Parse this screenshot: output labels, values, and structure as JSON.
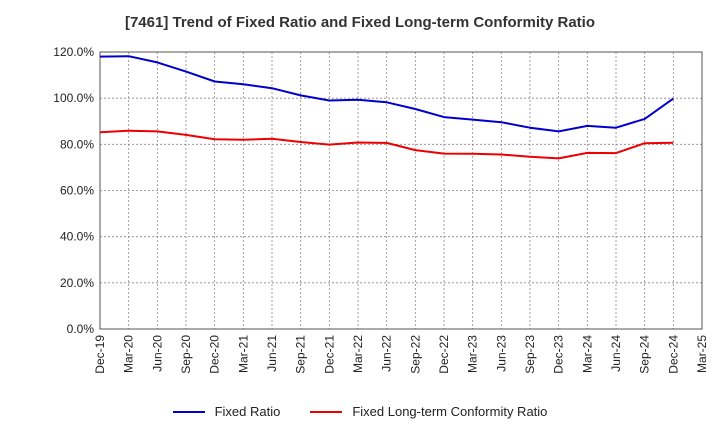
{
  "chart_data": {
    "type": "line",
    "title": "[7461]  Trend of Fixed Ratio and Fixed Long-term Conformity Ratio",
    "xlabel": "",
    "ylabel": "",
    "categories": [
      "Dec-19",
      "Mar-20",
      "Jun-20",
      "Sep-20",
      "Dec-20",
      "Mar-21",
      "Jun-21",
      "Sep-21",
      "Dec-21",
      "Mar-22",
      "Jun-22",
      "Sep-22",
      "Dec-22",
      "Mar-23",
      "Jun-23",
      "Sep-23",
      "Dec-23",
      "Mar-24",
      "Jun-24",
      "Sep-24",
      "Dec-24",
      "Mar-25"
    ],
    "yticks": [
      "0.0%",
      "20.0%",
      "40.0%",
      "60.0%",
      "80.0%",
      "100.0%",
      "120.0%"
    ],
    "ylim": [
      0,
      120
    ],
    "grid": true,
    "legend_position": "bottom",
    "series": [
      {
        "name": "Fixed Ratio",
        "color": "#0000cc",
        "values": [
          118.0,
          118.2,
          115.5,
          111.5,
          107.2,
          106.0,
          104.3,
          101.2,
          99.0,
          99.3,
          98.2,
          95.3,
          91.8,
          90.7,
          89.6,
          87.2,
          85.6,
          88.0,
          87.2,
          91.0,
          99.8,
          null
        ]
      },
      {
        "name": "Fixed Long-term Conformity Ratio",
        "color": "#ee0000",
        "values": [
          85.2,
          85.9,
          85.6,
          84.1,
          82.2,
          82.0,
          82.4,
          81.0,
          79.9,
          80.8,
          80.6,
          77.5,
          76.0,
          75.9,
          75.6,
          74.6,
          73.9,
          76.3,
          76.2,
          80.5,
          80.7,
          null
        ]
      }
    ]
  }
}
